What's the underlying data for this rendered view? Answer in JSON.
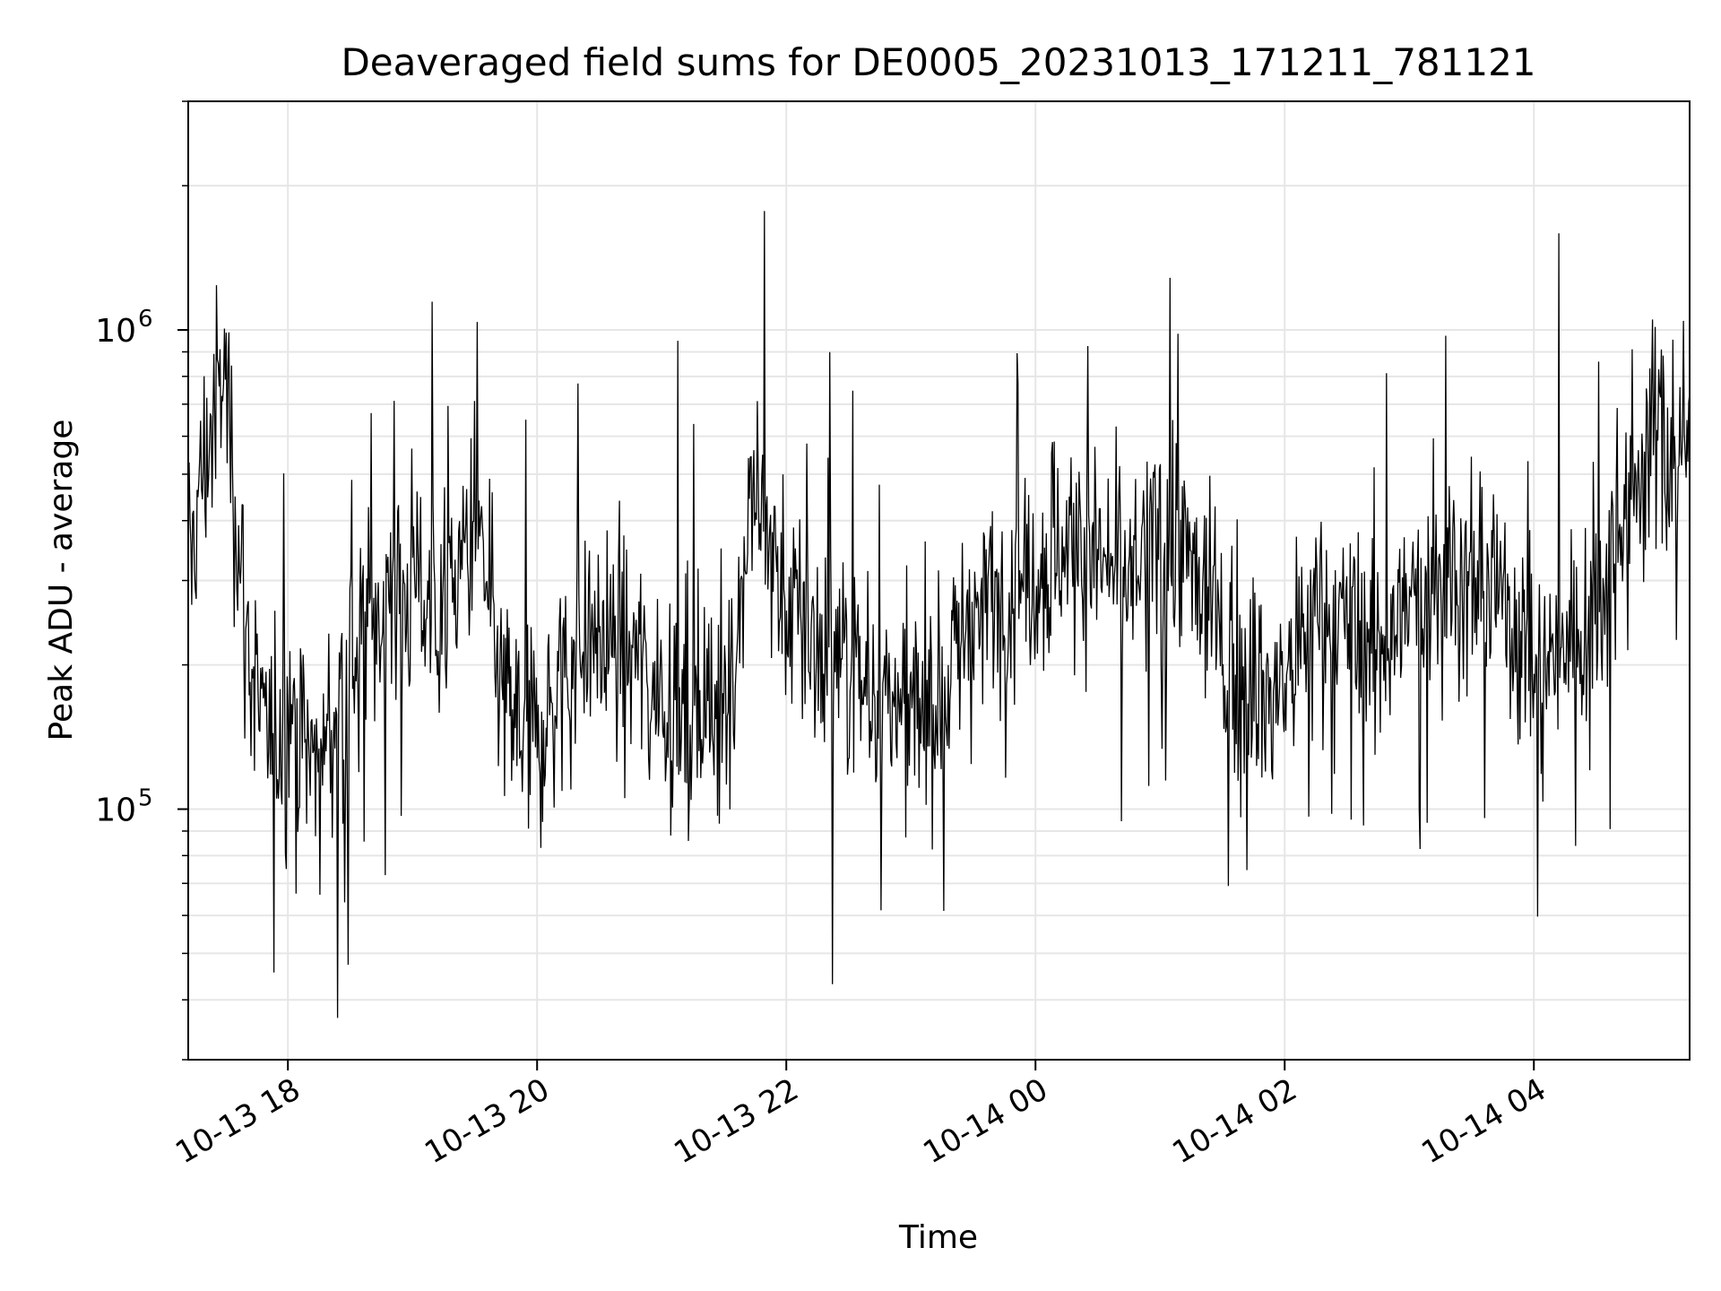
{
  "chart_data": {
    "type": "line",
    "title": "Deaveraged field sums for DE0005_20231013_171211_781121",
    "xlabel": "Time",
    "ylabel": "Peak ADU - average",
    "x_axis": {
      "type": "time",
      "range": [
        "2023-10-13T17:12",
        "2023-10-14T05:15"
      ],
      "ticks": [
        {
          "value": "2023-10-13T18:00",
          "label": "10-13 18"
        },
        {
          "value": "2023-10-13T20:00",
          "label": "10-13 20"
        },
        {
          "value": "2023-10-13T22:00",
          "label": "10-13 22"
        },
        {
          "value": "2023-10-14T00:00",
          "label": "10-14 00"
        },
        {
          "value": "2023-10-14T02:00",
          "label": "10-14 02"
        },
        {
          "value": "2023-10-14T04:00",
          "label": "10-14 04"
        }
      ]
    },
    "y_axis": {
      "scale": "log",
      "range": [
        30000,
        3000000
      ],
      "major_ticks": [
        {
          "value": 100000,
          "base": "10",
          "exp": "5"
        },
        {
          "value": 1000000,
          "base": "10",
          "exp": "6"
        }
      ]
    },
    "grid": true,
    "series": [
      {
        "color": "#000000",
        "points": [
          [
            "2023-10-13T17:12",
            310000
          ],
          [
            "2023-10-13T17:20",
            540000
          ],
          [
            "2023-10-13T17:30",
            820000
          ],
          [
            "2023-10-13T17:40",
            230000
          ],
          [
            "2023-10-13T17:50",
            130000
          ],
          [
            "2023-10-13T18:00",
            160000
          ],
          [
            "2023-10-13T18:15",
            120000
          ],
          [
            "2023-10-13T18:30",
            210000
          ],
          [
            "2023-10-13T18:45",
            260000
          ],
          [
            "2023-10-13T19:00",
            300000
          ],
          [
            "2023-10-13T19:15",
            260000
          ],
          [
            "2023-10-13T19:30",
            380000
          ],
          [
            "2023-10-13T19:45",
            160000
          ],
          [
            "2023-10-13T20:00",
            140000
          ],
          [
            "2023-10-13T20:15",
            200000
          ],
          [
            "2023-10-13T20:30",
            230000
          ],
          [
            "2023-10-13T20:45",
            210000
          ],
          [
            "2023-10-13T21:00",
            180000
          ],
          [
            "2023-10-13T21:15",
            150000
          ],
          [
            "2023-10-13T21:30",
            160000
          ],
          [
            "2023-10-13T21:45",
            480000
          ],
          [
            "2023-10-13T22:00",
            260000
          ],
          [
            "2023-10-13T22:15",
            220000
          ],
          [
            "2023-10-13T22:30",
            200000
          ],
          [
            "2023-10-13T22:45",
            170000
          ],
          [
            "2023-10-13T23:00",
            150000
          ],
          [
            "2023-10-13T23:15",
            180000
          ],
          [
            "2023-10-13T23:30",
            260000
          ],
          [
            "2023-10-13T23:45",
            280000
          ],
          [
            "2023-10-14T00:00",
            320000
          ],
          [
            "2023-10-14T00:15",
            360000
          ],
          [
            "2023-10-14T00:30",
            330000
          ],
          [
            "2023-10-14T00:45",
            300000
          ],
          [
            "2023-10-14T01:00",
            380000
          ],
          [
            "2023-10-14T01:15",
            320000
          ],
          [
            "2023-10-14T01:30",
            220000
          ],
          [
            "2023-10-14T01:45",
            170000
          ],
          [
            "2023-10-14T02:00",
            180000
          ],
          [
            "2023-10-14T02:15",
            260000
          ],
          [
            "2023-10-14T02:30",
            240000
          ],
          [
            "2023-10-14T02:45",
            220000
          ],
          [
            "2023-10-14T03:00",
            260000
          ],
          [
            "2023-10-14T03:15",
            320000
          ],
          [
            "2023-10-14T03:30",
            300000
          ],
          [
            "2023-10-14T03:45",
            280000
          ],
          [
            "2023-10-14T04:00",
            200000
          ],
          [
            "2023-10-14T04:15",
            220000
          ],
          [
            "2023-10-14T04:30",
            260000
          ],
          [
            "2023-10-14T04:45",
            480000
          ],
          [
            "2023-10-14T05:00",
            600000
          ],
          [
            "2023-10-14T05:15",
            550000
          ]
        ]
      }
    ]
  }
}
